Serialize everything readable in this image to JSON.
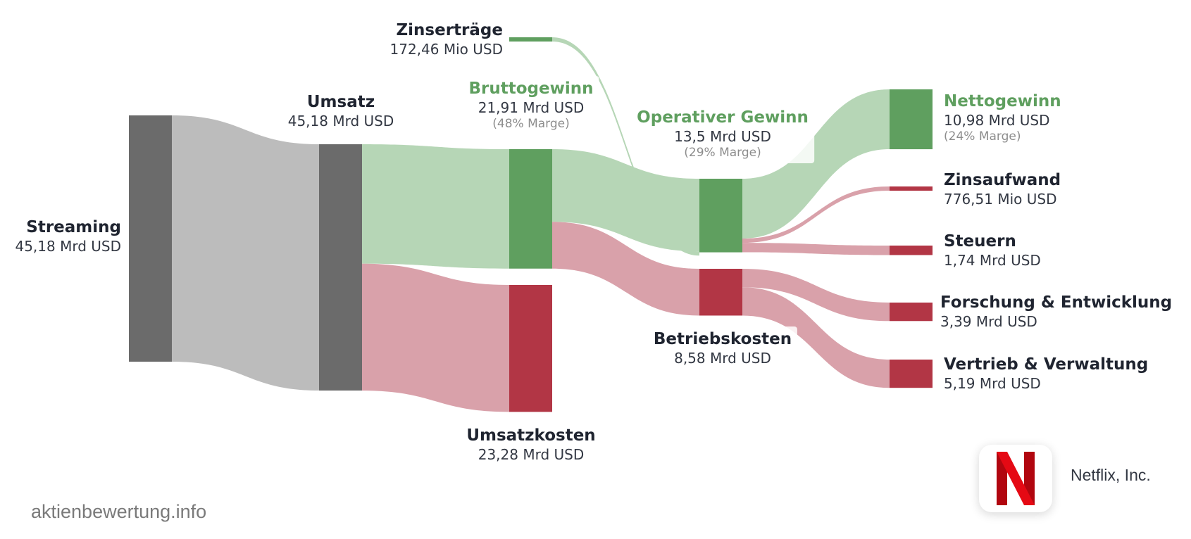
{
  "colors": {
    "neutral_node": "#6b6b6b",
    "neutral_link": "#bcbcbc",
    "profit_node": "#5f9f5f",
    "profit_link": "#b6d6b6",
    "cost_node": "#b23645",
    "cost_link": "#d9a1aa"
  },
  "chart_data": {
    "type": "sankey",
    "nodes": [
      {
        "id": "streaming",
        "name": "Streaming",
        "value": "45,18 Mrd USD",
        "amount_bn": 45.18,
        "kind": "neutral"
      },
      {
        "id": "umsatz",
        "name": "Umsatz",
        "value": "45,18 Mrd USD",
        "amount_bn": 45.18,
        "kind": "neutral"
      },
      {
        "id": "bruttogewinn",
        "name": "Bruttogewinn",
        "value": "21,91 Mrd USD",
        "margin": "(48% Marge)",
        "amount_bn": 21.91,
        "kind": "profit"
      },
      {
        "id": "umsatzkosten",
        "name": "Umsatzkosten",
        "value": "23,28 Mrd USD",
        "amount_bn": 23.28,
        "kind": "cost"
      },
      {
        "id": "zinsertraege",
        "name": "Zinserträge",
        "value": "172,46 Mio USD",
        "amount_bn": 0.17246,
        "kind": "profit"
      },
      {
        "id": "operativer_gewinn",
        "name": "Operativer Gewinn",
        "value": "13,5 Mrd USD",
        "margin": "(29% Marge)",
        "amount_bn": 13.5,
        "kind": "profit"
      },
      {
        "id": "betriebskosten",
        "name": "Betriebskosten",
        "value": "8,58 Mrd USD",
        "amount_bn": 8.58,
        "kind": "cost"
      },
      {
        "id": "nettogewinn",
        "name": "Nettogewinn",
        "value": "10,98 Mrd USD",
        "margin": "(24% Marge)",
        "amount_bn": 10.98,
        "kind": "profit"
      },
      {
        "id": "zinsaufwand",
        "name": "Zinsaufwand",
        "value": "776,51 Mio USD",
        "amount_bn": 0.77651,
        "kind": "cost"
      },
      {
        "id": "steuern",
        "name": "Steuern",
        "value": "1,74 Mrd USD",
        "amount_bn": 1.74,
        "kind": "cost"
      },
      {
        "id": "forschung",
        "name": "Forschung & Entwicklung",
        "value": "3,39 Mrd USD",
        "amount_bn": 3.39,
        "kind": "cost"
      },
      {
        "id": "vertrieb",
        "name": "Vertrieb & Verwaltung",
        "value": "5,19 Mrd USD",
        "amount_bn": 5.19,
        "kind": "cost"
      }
    ],
    "links": [
      {
        "source": "streaming",
        "target": "umsatz",
        "amount_bn": 45.18
      },
      {
        "source": "umsatz",
        "target": "bruttogewinn",
        "amount_bn": 21.91
      },
      {
        "source": "umsatz",
        "target": "umsatzkosten",
        "amount_bn": 23.28
      },
      {
        "source": "bruttogewinn",
        "target": "operativer_gewinn",
        "amount_bn": 13.33
      },
      {
        "source": "bruttogewinn",
        "target": "betriebskosten",
        "amount_bn": 8.58
      },
      {
        "source": "zinsertraege",
        "target": "operativer_gewinn",
        "amount_bn": 0.17246
      },
      {
        "source": "operativer_gewinn",
        "target": "nettogewinn",
        "amount_bn": 10.98
      },
      {
        "source": "operativer_gewinn",
        "target": "zinsaufwand",
        "amount_bn": 0.77651
      },
      {
        "source": "operativer_gewinn",
        "target": "steuern",
        "amount_bn": 1.74
      },
      {
        "source": "betriebskosten",
        "target": "forschung",
        "amount_bn": 3.39
      },
      {
        "source": "betriebskosten",
        "target": "vertrieb",
        "amount_bn": 5.19
      }
    ]
  },
  "footer": {
    "watermark": "aktienbewertung.info",
    "company_name": "Netflix, Inc.",
    "company_logo_icon": "netflix-n-icon"
  }
}
